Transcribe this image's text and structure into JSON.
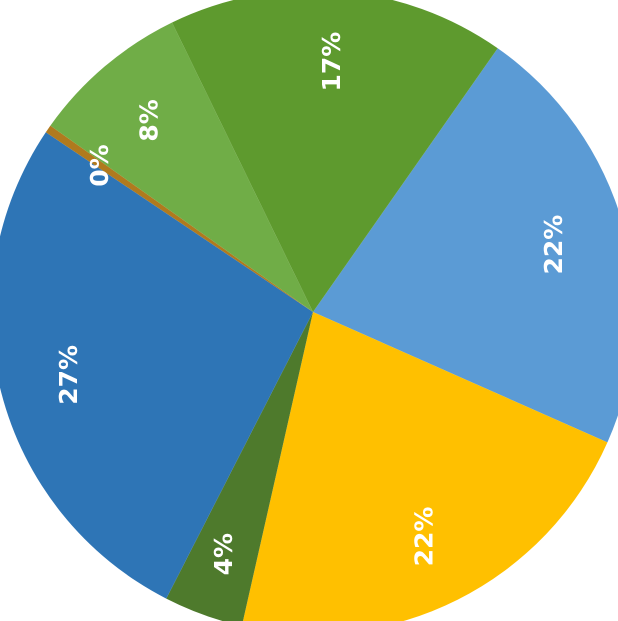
{
  "chart_data": {
    "type": "pie",
    "slices": [
      {
        "label": "22%",
        "value": 22,
        "color": "#5b9bd5"
      },
      {
        "label": "22%",
        "value": 22,
        "color": "#ffc000"
      },
      {
        "label": "4%",
        "value": 4,
        "color": "#4e7a2c"
      },
      {
        "label": "27%",
        "value": 27,
        "color": "#2e75b6"
      },
      {
        "label": "0%",
        "value": 0.4,
        "color": "#b07a1e"
      },
      {
        "label": "8%",
        "value": 8,
        "color": "#70ad47"
      },
      {
        "label": "17%",
        "value": 17,
        "color": "#5e9a2e"
      }
    ],
    "title": "",
    "legend": "none"
  }
}
